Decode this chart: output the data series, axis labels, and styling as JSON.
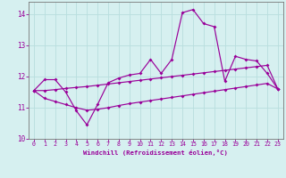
{
  "xlabel": "Windchill (Refroidissement éolien,°C)",
  "xlim": [
    -0.5,
    23.5
  ],
  "ylim": [
    10.0,
    14.4
  ],
  "yticks": [
    10,
    11,
    12,
    13,
    14
  ],
  "xticks": [
    0,
    1,
    2,
    3,
    4,
    5,
    6,
    7,
    8,
    9,
    10,
    11,
    12,
    13,
    14,
    15,
    16,
    17,
    18,
    19,
    20,
    21,
    22,
    23
  ],
  "bg_color": "#d6f0f0",
  "line_color": "#990099",
  "grid_color": "#b8dede",
  "series1_x": [
    0,
    1,
    2,
    3,
    4,
    5,
    6,
    7,
    8,
    9,
    10,
    11,
    12,
    13,
    14,
    15,
    16,
    17,
    18,
    19,
    20,
    21,
    22,
    23
  ],
  "series1_y": [
    11.55,
    11.9,
    11.9,
    11.5,
    10.9,
    10.45,
    11.1,
    11.8,
    11.95,
    12.05,
    12.1,
    12.55,
    12.1,
    12.55,
    14.05,
    14.15,
    13.7,
    13.6,
    11.85,
    12.65,
    12.55,
    12.5,
    12.1,
    11.6
  ],
  "series2_x": [
    0,
    1,
    2,
    3,
    4,
    5,
    6,
    7,
    8,
    9,
    10,
    11,
    12,
    13,
    14,
    15,
    16,
    17,
    18,
    19,
    20,
    21,
    22,
    23
  ],
  "series2_y": [
    11.55,
    11.55,
    11.58,
    11.62,
    11.65,
    11.68,
    11.72,
    11.76,
    11.8,
    11.84,
    11.88,
    11.92,
    11.96,
    12.0,
    12.04,
    12.08,
    12.12,
    12.16,
    12.2,
    12.24,
    12.28,
    12.32,
    12.36,
    11.6
  ],
  "series3_x": [
    0,
    1,
    2,
    3,
    4,
    5,
    6,
    7,
    8,
    9,
    10,
    11,
    12,
    13,
    14,
    15,
    16,
    17,
    18,
    19,
    20,
    21,
    22,
    23
  ],
  "series3_y": [
    11.55,
    11.3,
    11.2,
    11.1,
    11.0,
    10.92,
    10.95,
    11.0,
    11.07,
    11.13,
    11.18,
    11.23,
    11.28,
    11.33,
    11.38,
    11.43,
    11.48,
    11.53,
    11.58,
    11.63,
    11.68,
    11.73,
    11.78,
    11.6
  ]
}
